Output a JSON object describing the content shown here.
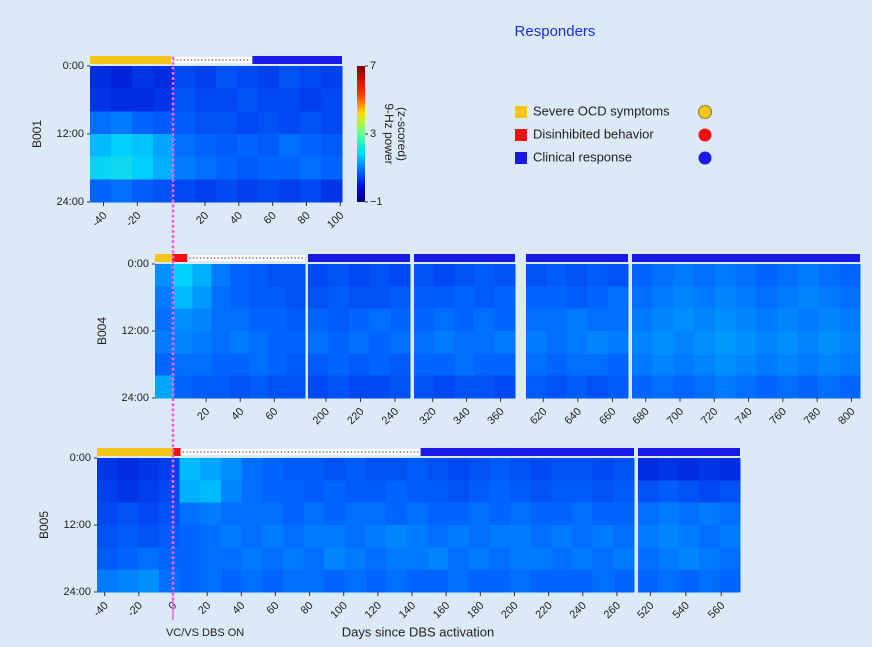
{
  "title": "Responders",
  "colorbar": {
    "label": [
      "9-Hz power",
      "(z-scored)"
    ],
    "lim": [
      -1,
      7
    ],
    "ticks": [
      7,
      3,
      {
        "value": -1,
        "label": "−1"
      }
    ]
  },
  "legend": [
    {
      "label": "Severe OCD symptoms",
      "color": "#f5c518"
    },
    {
      "label": "Disinhibited behavior",
      "color": "#ee1111"
    },
    {
      "label": "Clinical response",
      "color": "#1a1ae6"
    }
  ],
  "annotations": {
    "dbs_on": {
      "text": "VC/VS DBS ON",
      "x": 0
    },
    "x_label": "Days since DBS activation"
  },
  "chart_data": [
    {
      "type": "heatmap",
      "ylabel": "B001",
      "ylim": [
        0,
        24
      ],
      "yticks": [
        {
          "value": 0,
          "label": "0:00"
        },
        {
          "value": 12,
          "label": "12:00"
        },
        {
          "value": 24,
          "label": "24:00"
        }
      ],
      "status": [
        {
          "color": "#f5c518",
          "from": -48,
          "to": 0
        },
        {
          "color": "#9a9a9a",
          "dotted": true,
          "from": 0,
          "to": 48
        },
        {
          "color": "#1a1ae6",
          "from": 48,
          "to": 101
        }
      ],
      "segments": [
        {
          "xlim": [
            -48,
            101
          ],
          "xticks": [
            -40,
            -20,
            20,
            40,
            60,
            80,
            100
          ],
          "z": [
            [
              0.2,
              0.1,
              0.3,
              0.2,
              0.5,
              0.4,
              0.6,
              0.5,
              0.4,
              0.6,
              0.5,
              0.4
            ],
            [
              0.3,
              0.2,
              0.2,
              0.3,
              0.6,
              0.5,
              0.5,
              0.6,
              0.5,
              0.5,
              0.4,
              0.5
            ],
            [
              0.9,
              1.0,
              0.8,
              0.7,
              0.7,
              0.6,
              0.6,
              0.5,
              0.6,
              0.5,
              0.6,
              0.5
            ],
            [
              1.6,
              1.8,
              1.7,
              1.4,
              0.9,
              0.8,
              0.7,
              0.8,
              0.7,
              0.9,
              0.8,
              0.7
            ],
            [
              1.9,
              2.0,
              1.8,
              1.5,
              1.0,
              0.9,
              0.8,
              0.7,
              0.8,
              0.8,
              0.9,
              0.8
            ],
            [
              0.8,
              0.9,
              0.7,
              0.6,
              0.5,
              0.4,
              0.5,
              0.4,
              0.5,
              0.4,
              0.5,
              0.3
            ]
          ]
        }
      ]
    },
    {
      "type": "heatmap",
      "ylabel": "B004",
      "ylim": [
        0,
        24
      ],
      "yticks": [
        {
          "value": 0,
          "label": "0:00"
        },
        {
          "value": 12,
          "label": "12:00"
        },
        {
          "value": 24,
          "label": "24:00"
        }
      ],
      "status": [
        {
          "color": "#f5c518",
          "from": -10,
          "to": 0
        },
        {
          "color": "#ee1111",
          "from": 0,
          "to": 9
        },
        {
          "color": "#9a9a9a",
          "dotted": true,
          "from": 9,
          "to": 78
        },
        {
          "color": "#1a1ae6",
          "from": 78,
          "to": 805
        }
      ],
      "segments": [
        {
          "xlim": [
            -10,
            78
          ],
          "xticks": [
            20,
            40,
            60
          ],
          "z": [
            [
              1.2,
              1.8,
              1.5,
              1.0,
              0.8,
              0.7,
              0.6,
              0.6
            ],
            [
              1.0,
              1.6,
              1.3,
              0.9,
              0.8,
              0.7,
              0.7,
              0.6
            ],
            [
              0.9,
              1.2,
              1.1,
              0.9,
              0.9,
              0.8,
              0.8,
              0.7
            ],
            [
              1.0,
              1.1,
              1.0,
              0.9,
              1.0,
              0.9,
              0.8,
              0.8
            ],
            [
              0.8,
              0.9,
              0.9,
              0.8,
              0.8,
              0.9,
              0.8,
              0.7
            ],
            [
              1.4,
              0.8,
              0.7,
              0.7,
              0.6,
              0.7,
              0.6,
              0.6
            ]
          ]
        },
        {
          "xlim": [
            189.6,
            248.7
          ],
          "xticks": [
            200,
            220,
            240
          ],
          "z": [
            [
              0.5,
              0.6,
              0.5,
              0.6,
              0.5
            ],
            [
              0.6,
              0.7,
              0.6,
              0.6,
              0.7
            ],
            [
              0.8,
              0.7,
              0.8,
              0.9,
              0.8
            ],
            [
              0.9,
              0.8,
              0.9,
              0.8,
              0.9
            ],
            [
              0.7,
              0.8,
              0.7,
              0.8,
              0.7
            ],
            [
              0.5,
              0.6,
              0.5,
              0.5,
              0.6
            ]
          ]
        },
        {
          "xlim": [
            309,
            368.5
          ],
          "xticks": [
            320,
            340,
            360
          ],
          "z": [
            [
              0.6,
              0.5,
              0.6,
              0.7,
              0.6
            ],
            [
              0.7,
              0.7,
              0.8,
              0.7,
              0.8
            ],
            [
              0.8,
              0.9,
              0.8,
              0.9,
              0.8
            ],
            [
              0.9,
              1.0,
              0.9,
              0.9,
              1.0
            ],
            [
              0.8,
              0.8,
              0.9,
              0.8,
              0.8
            ],
            [
              0.6,
              0.5,
              0.6,
              0.6,
              0.5
            ]
          ]
        },
        {
          "xlim": [
            610,
            669
          ],
          "xticks": [
            620,
            640,
            660
          ],
          "z": [
            [
              0.6,
              0.7,
              0.6,
              0.7,
              0.6
            ],
            [
              0.8,
              0.8,
              0.7,
              0.8,
              0.9
            ],
            [
              0.9,
              0.9,
              1.0,
              0.9,
              0.9
            ],
            [
              1.0,
              0.9,
              1.0,
              1.1,
              1.0
            ],
            [
              0.9,
              0.8,
              0.9,
              0.9,
              0.8
            ],
            [
              0.7,
              0.6,
              0.7,
              0.6,
              0.7
            ]
          ]
        },
        {
          "xlim": [
            672,
            805
          ],
          "xticks": [
            680,
            700,
            720,
            740,
            760,
            780,
            800
          ],
          "z": [
            [
              0.8,
              0.9,
              1.0,
              0.9,
              1.0,
              0.9,
              0.8,
              0.9,
              1.0,
              0.9,
              0.8
            ],
            [
              0.9,
              1.0,
              1.1,
              1.0,
              1.1,
              1.0,
              0.9,
              1.0,
              1.1,
              1.0,
              0.9
            ],
            [
              1.0,
              1.1,
              1.2,
              1.1,
              1.2,
              1.1,
              1.0,
              1.1,
              1.0,
              1.1,
              1.0
            ],
            [
              1.1,
              1.2,
              1.1,
              1.2,
              1.3,
              1.2,
              1.1,
              1.2,
              1.1,
              1.2,
              1.1
            ],
            [
              1.0,
              1.1,
              1.0,
              1.1,
              1.2,
              1.1,
              1.0,
              1.1,
              1.0,
              1.1,
              1.0
            ],
            [
              0.8,
              0.9,
              0.8,
              0.9,
              1.0,
              0.9,
              0.8,
              0.9,
              0.8,
              0.9,
              0.8
            ]
          ]
        }
      ]
    },
    {
      "type": "heatmap",
      "ylabel": "B005",
      "ylim": [
        0,
        24
      ],
      "yticks": [
        {
          "value": 0,
          "label": "0:00"
        },
        {
          "value": 12,
          "label": "12:00"
        },
        {
          "value": 24,
          "label": "24:00"
        }
      ],
      "status": [
        {
          "color": "#f5c518",
          "from": -44.5,
          "to": 0
        },
        {
          "color": "#ee1111",
          "from": 0,
          "to": 4.5
        },
        {
          "color": "#9a9a9a",
          "dotted": true,
          "from": 4.5,
          "to": 145
        },
        {
          "color": "#1a1ae6",
          "from": 145,
          "to": 570.6
        }
      ],
      "segments": [
        {
          "xlim": [
            -44.5,
            270
          ],
          "xticks": [
            -40,
            -20,
            0,
            20,
            40,
            60,
            80,
            100,
            120,
            140,
            160,
            180,
            200,
            220,
            240,
            260
          ],
          "z": [
            [
              0.3,
              0.2,
              0.3,
              0.4,
              1.6,
              1.4,
              1.2,
              0.9,
              0.8,
              0.7,
              0.7,
              0.6,
              0.7,
              0.6,
              0.6,
              0.7,
              0.6,
              0.5,
              0.6,
              0.7,
              0.6,
              0.5,
              0.6,
              0.6,
              0.5,
              0.6
            ],
            [
              0.4,
              0.3,
              0.4,
              0.5,
              1.5,
              1.6,
              1.1,
              0.9,
              0.8,
              0.8,
              0.7,
              0.8,
              0.7,
              0.7,
              0.8,
              0.7,
              0.7,
              0.6,
              0.7,
              0.8,
              0.7,
              0.6,
              0.7,
              0.7,
              0.6,
              0.7
            ],
            [
              0.5,
              0.6,
              0.5,
              0.6,
              0.9,
              1.0,
              0.9,
              0.9,
              0.9,
              0.8,
              0.9,
              0.8,
              0.9,
              0.9,
              0.8,
              0.9,
              0.8,
              0.8,
              0.9,
              0.8,
              0.9,
              0.8,
              0.8,
              0.9,
              0.8,
              0.8
            ],
            [
              0.6,
              0.7,
              0.6,
              0.7,
              0.8,
              0.9,
              1.0,
              0.9,
              1.0,
              0.9,
              1.0,
              1.0,
              0.9,
              1.0,
              1.1,
              1.0,
              0.9,
              1.0,
              0.9,
              1.0,
              1.0,
              0.9,
              1.0,
              0.9,
              1.0,
              0.9
            ],
            [
              0.7,
              0.8,
              0.9,
              0.8,
              0.8,
              0.9,
              0.9,
              1.0,
              0.9,
              1.0,
              0.9,
              1.1,
              1.0,
              0.9,
              1.0,
              1.0,
              1.1,
              0.9,
              1.0,
              0.9,
              1.0,
              1.0,
              0.9,
              1.0,
              0.9,
              1.0
            ],
            [
              1.0,
              1.1,
              1.2,
              0.9,
              0.8,
              0.9,
              0.8,
              0.9,
              0.8,
              0.9,
              0.9,
              0.8,
              0.9,
              0.8,
              0.9,
              0.8,
              0.8,
              0.9,
              0.8,
              0.8,
              0.9,
              0.8,
              0.8,
              0.8,
              0.9,
              0.8
            ]
          ]
        },
        {
          "xlim": [
            513,
            570.6
          ],
          "xticks": [
            520,
            540,
            560
          ],
          "z": [
            [
              0.2,
              0.3,
              0.2,
              0.3,
              0.2
            ],
            [
              0.6,
              0.7,
              0.6,
              0.5,
              0.6
            ],
            [
              0.9,
              1.0,
              0.9,
              1.0,
              0.9
            ],
            [
              1.0,
              1.1,
              1.0,
              0.9,
              1.0
            ],
            [
              0.9,
              1.0,
              1.1,
              1.0,
              0.9
            ],
            [
              0.8,
              0.9,
              0.8,
              0.9,
              0.8
            ]
          ]
        }
      ]
    }
  ]
}
